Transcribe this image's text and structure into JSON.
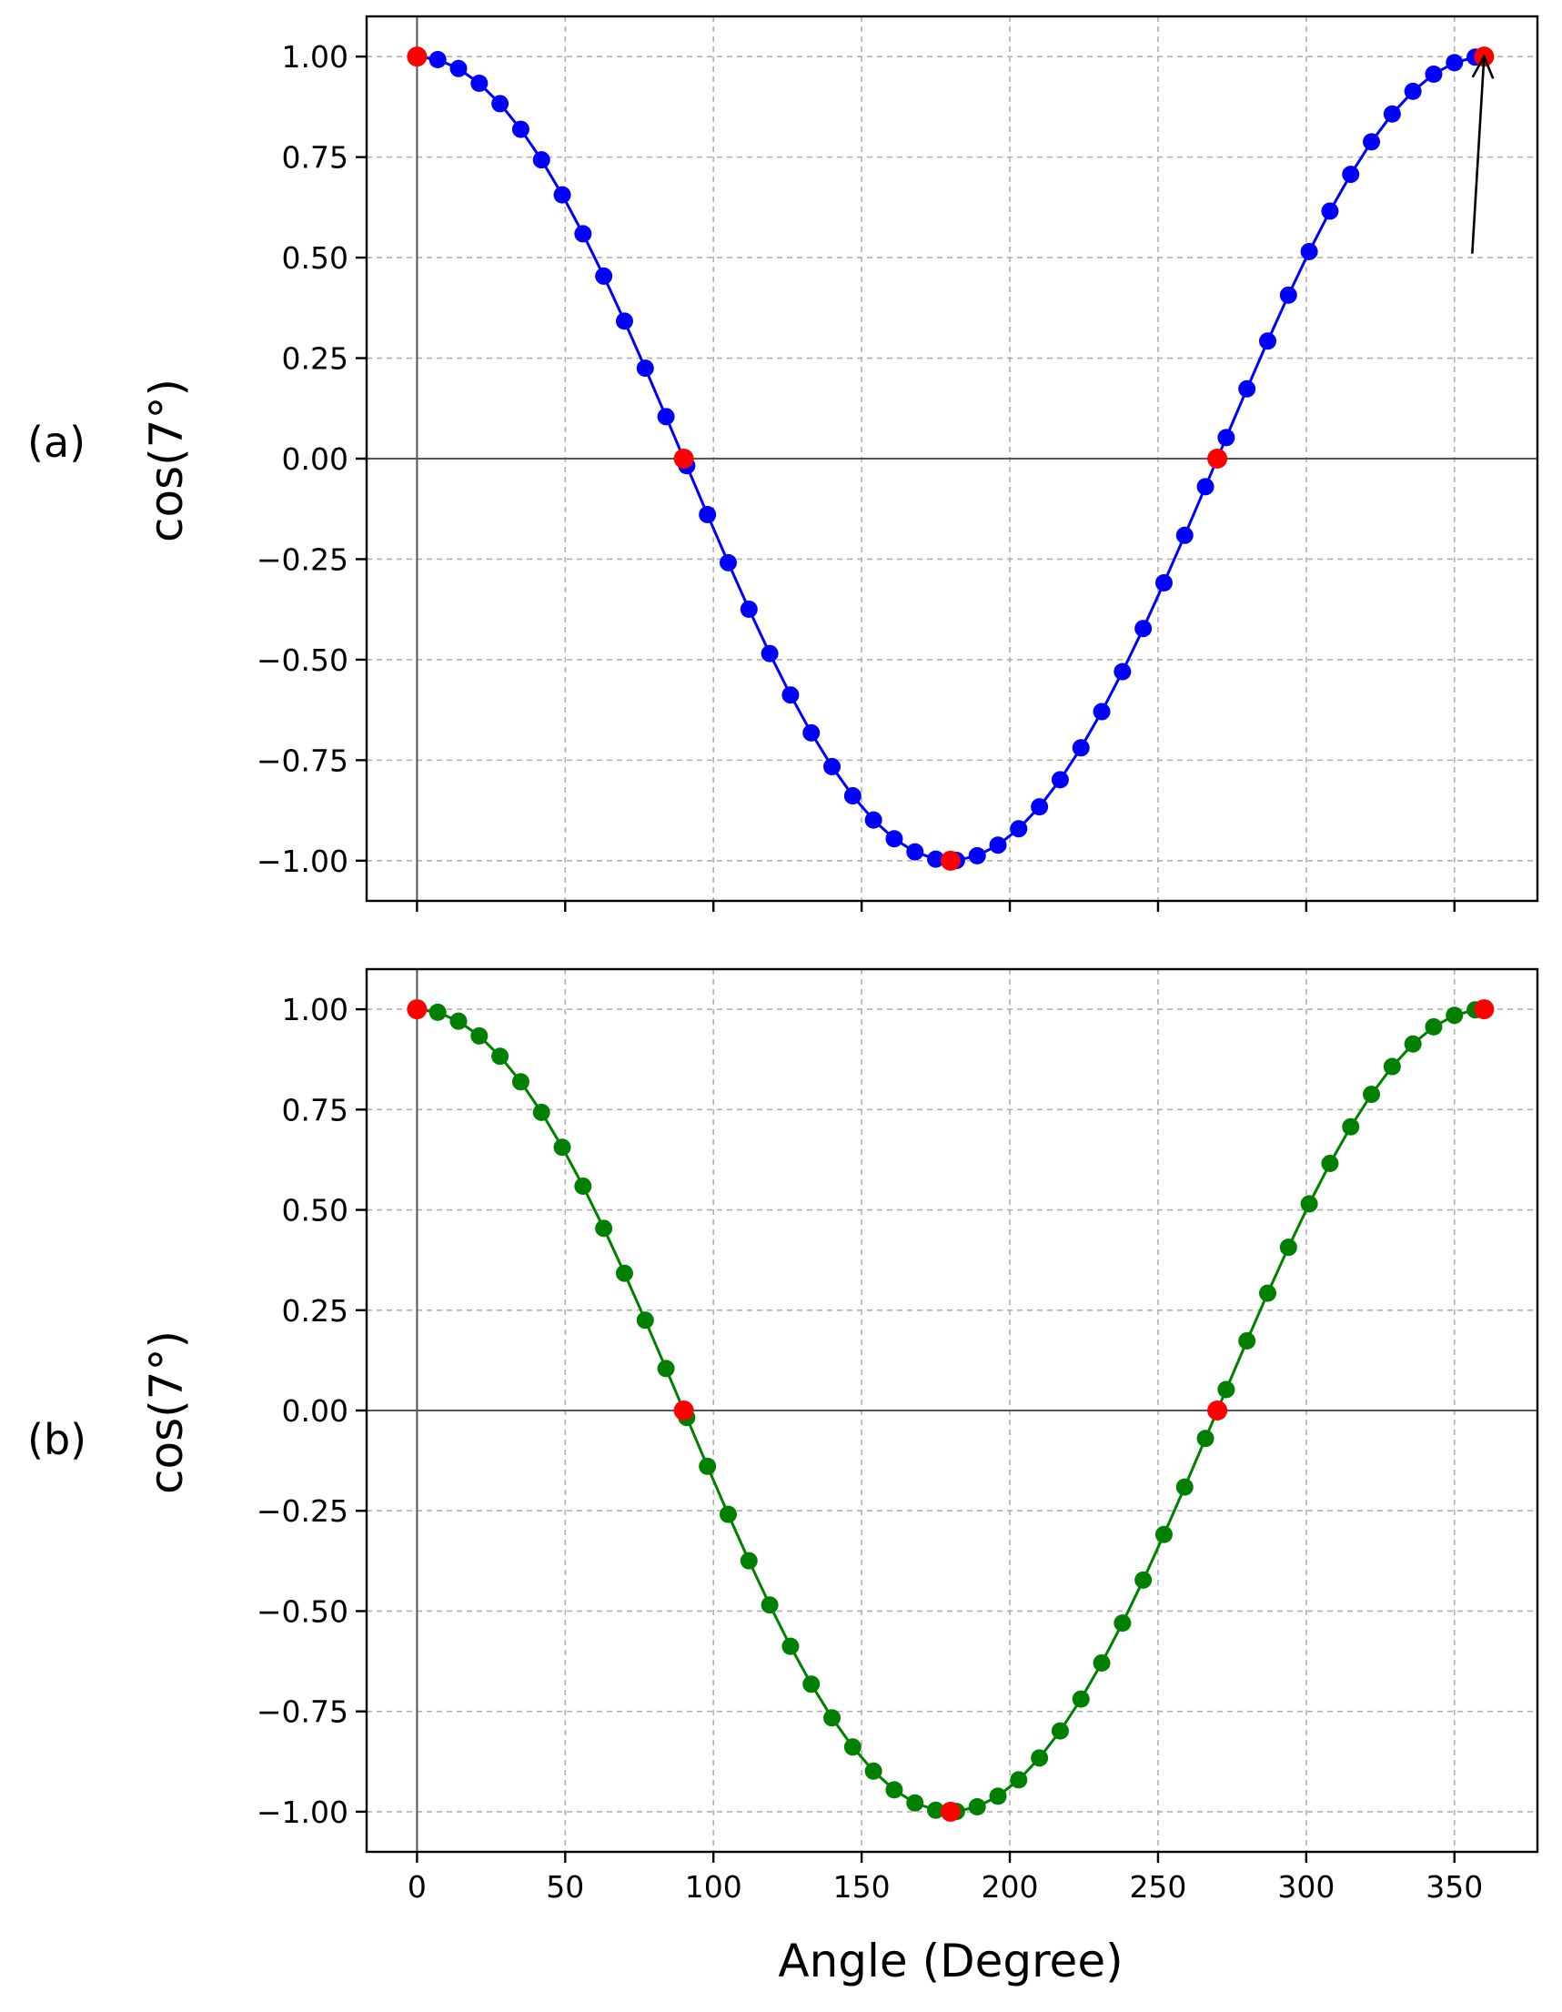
{
  "figure": {
    "xlabel": "Angle (Degree)"
  },
  "chart_data": [
    {
      "type": "line",
      "panel_label": "(a)",
      "title": "",
      "xlabel": "",
      "ylabel": "cos(7°)",
      "xlim": [
        -17,
        378
      ],
      "ylim": [
        -1.1,
        1.1
      ],
      "xticks": [
        0,
        50,
        100,
        150,
        200,
        250,
        300,
        350
      ],
      "xtick_labels_shown": false,
      "yticks": [
        1.0,
        0.75,
        0.5,
        0.25,
        0.0,
        -0.25,
        -0.5,
        -0.75,
        -1.0
      ],
      "ytick_labels": [
        "1.00",
        "0.75",
        "0.50",
        "0.25",
        "0.00",
        "−0.25",
        "−0.50",
        "−0.75",
        "−1.00"
      ],
      "grid": true,
      "series": [
        {
          "x": [
            0,
            7,
            14,
            21,
            28,
            35,
            42,
            49,
            56,
            63,
            70,
            77,
            84,
            91,
            98,
            105,
            112,
            119,
            126,
            133,
            140,
            147,
            154,
            161,
            168,
            175,
            182,
            189,
            196,
            203,
            210,
            217,
            224,
            231,
            238,
            245,
            252,
            259,
            266,
            273,
            280,
            287,
            294,
            301,
            308,
            315,
            322,
            329,
            336,
            343,
            350,
            357
          ],
          "y": [
            1.0,
            0.9925,
            0.9703,
            0.9336,
            0.8829,
            0.8192,
            0.7431,
            0.6561,
            0.5592,
            0.454,
            0.342,
            0.225,
            0.1045,
            -0.0175,
            -0.1392,
            -0.2588,
            -0.3746,
            -0.4848,
            -0.5878,
            -0.682,
            -0.766,
            -0.8387,
            -0.8988,
            -0.9455,
            -0.9781,
            -0.9962,
            -0.9994,
            -0.9877,
            -0.9613,
            -0.9205,
            -0.866,
            -0.7986,
            -0.7193,
            -0.6293,
            -0.5299,
            -0.4226,
            -0.309,
            -0.1908,
            -0.0698,
            0.0523,
            0.1736,
            0.2924,
            0.4067,
            0.515,
            0.6157,
            0.7071,
            0.788,
            0.8572,
            0.9135,
            0.9563,
            0.9848,
            0.9986
          ],
          "color": "#0000ff",
          "marker": "circle"
        }
      ],
      "highlight_points": {
        "x": [
          0,
          90,
          180,
          270,
          360
        ],
        "y": [
          1.0,
          0.0,
          -1.0,
          0.0,
          1.0
        ],
        "color": "#ff0000"
      },
      "annotation": {
        "type": "arrow",
        "from": [
          356,
          0.51
        ],
        "to": [
          360,
          1.0
        ],
        "color": "#000000"
      }
    },
    {
      "type": "line",
      "panel_label": "(b)",
      "title": "",
      "xlabel": "Angle (Degree)",
      "ylabel": "cos(7°)",
      "xlim": [
        -17,
        378
      ],
      "ylim": [
        -1.1,
        1.1
      ],
      "xticks": [
        0,
        50,
        100,
        150,
        200,
        250,
        300,
        350
      ],
      "xtick_labels": [
        "0",
        "50",
        "100",
        "150",
        "200",
        "250",
        "300",
        "350"
      ],
      "xtick_labels_shown": true,
      "yticks": [
        1.0,
        0.75,
        0.5,
        0.25,
        0.0,
        -0.25,
        -0.5,
        -0.75,
        -1.0
      ],
      "ytick_labels": [
        "1.00",
        "0.75",
        "0.50",
        "0.25",
        "0.00",
        "−0.25",
        "−0.50",
        "−0.75",
        "−1.00"
      ],
      "grid": true,
      "series": [
        {
          "x": [
            0,
            7,
            14,
            21,
            28,
            35,
            42,
            49,
            56,
            63,
            70,
            77,
            84,
            91,
            98,
            105,
            112,
            119,
            126,
            133,
            140,
            147,
            154,
            161,
            168,
            175,
            182,
            189,
            196,
            203,
            210,
            217,
            224,
            231,
            238,
            245,
            252,
            259,
            266,
            273,
            280,
            287,
            294,
            301,
            308,
            315,
            322,
            329,
            336,
            343,
            350,
            357
          ],
          "y": [
            1.0,
            0.9925,
            0.9703,
            0.9336,
            0.8829,
            0.8192,
            0.7431,
            0.6561,
            0.5592,
            0.454,
            0.342,
            0.225,
            0.1045,
            -0.0175,
            -0.1392,
            -0.2588,
            -0.3746,
            -0.4848,
            -0.5878,
            -0.682,
            -0.766,
            -0.8387,
            -0.8988,
            -0.9455,
            -0.9781,
            -0.9962,
            -0.9994,
            -0.9877,
            -0.9613,
            -0.9205,
            -0.866,
            -0.7986,
            -0.7193,
            -0.6293,
            -0.5299,
            -0.4226,
            -0.309,
            -0.1908,
            -0.0698,
            0.0523,
            0.1736,
            0.2924,
            0.4067,
            0.515,
            0.6157,
            0.7071,
            0.788,
            0.8572,
            0.9135,
            0.9563,
            0.9848,
            0.9986
          ],
          "color": "#008000",
          "marker": "circle"
        }
      ],
      "highlight_points": {
        "x": [
          0,
          90,
          180,
          270,
          360
        ],
        "y": [
          1.0,
          0.0,
          -1.0,
          0.0,
          1.0
        ],
        "color": "#ff0000"
      }
    }
  ]
}
